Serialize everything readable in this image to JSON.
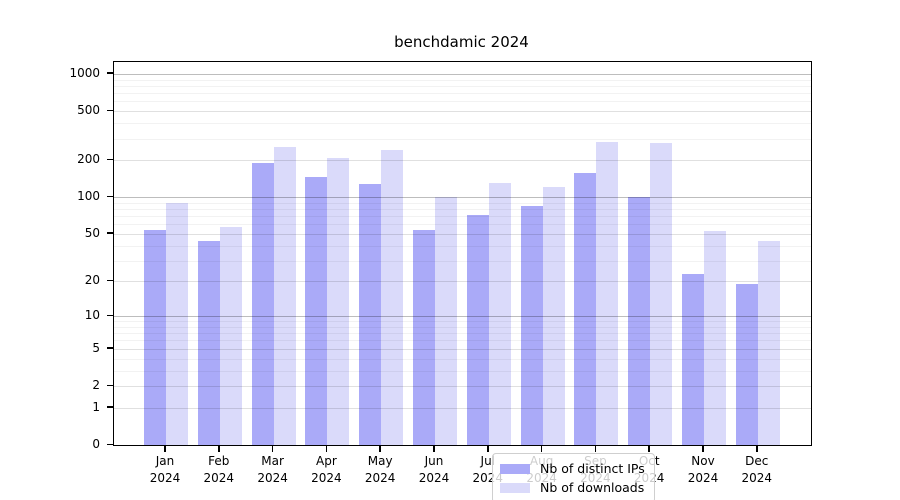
{
  "chart_data": {
    "type": "bar",
    "title": "benchdamic 2024",
    "categories": [
      "Jan 2024",
      "Feb 2024",
      "Mar 2024",
      "Apr 2024",
      "May 2024",
      "Jun 2024",
      "Jul 2024",
      "Aug 2024",
      "Sep 2024",
      "Oct 2024",
      "Nov 2024",
      "Dec 2024"
    ],
    "series": [
      {
        "name": "Nb of distinct IPs",
        "color": "#aaaaf8",
        "values": [
          54,
          44,
          191,
          146,
          129,
          54,
          71,
          85,
          157,
          101,
          23,
          19
        ]
      },
      {
        "name": "Nb of downloads",
        "color": "#dadafa",
        "values": [
          89,
          57,
          256,
          210,
          241,
          101,
          130,
          120,
          280,
          275,
          53,
          44
        ]
      }
    ],
    "y_scale": "log1p",
    "y_ticks": [
      0,
      1,
      2,
      5,
      10,
      20,
      50,
      100,
      200,
      500,
      1000
    ],
    "y_minor_ticks": [
      3,
      4,
      6,
      7,
      8,
      9,
      30,
      40,
      60,
      70,
      80,
      90,
      300,
      400,
      600,
      700,
      800,
      900
    ],
    "ylim": [
      0,
      1250
    ],
    "grid": true,
    "legend_position": "lower center",
    "colors": {
      "axis": "#000000",
      "grid_power_of_ten": "rgba(0,0,0,0.26)",
      "grid_labeled": "rgba(0,0,0,0.12)",
      "grid_minor": "rgba(0,0,0,0.05)"
    }
  }
}
